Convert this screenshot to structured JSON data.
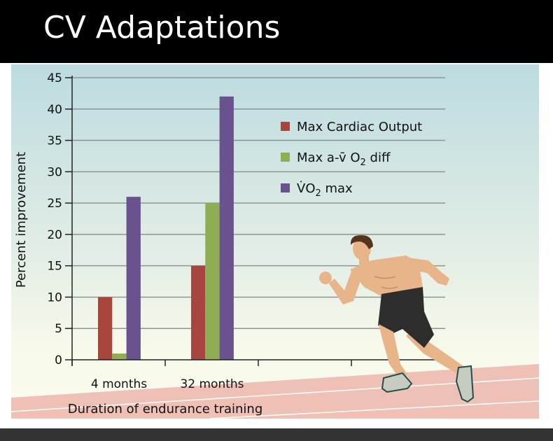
{
  "slide": {
    "title": "CV Adaptations"
  },
  "chart_data": {
    "type": "bar",
    "title": "",
    "xlabel": "Duration of endurance training",
    "ylabel": "Percent improvement",
    "categories": [
      "4 months",
      "32 months"
    ],
    "ylim": [
      0,
      45
    ],
    "yticks": [
      0,
      5,
      10,
      15,
      20,
      25,
      30,
      35,
      40,
      45
    ],
    "grid": true,
    "legend_placement": "top-right",
    "series": [
      {
        "name": "Max Cardiac Output",
        "values": [
          10,
          15
        ],
        "color": "#a8453f"
      },
      {
        "name": "Max a-v̄ O2 diff",
        "name_parts": [
          "Max a-v̄ O",
          "2",
          " diff"
        ],
        "values": [
          1,
          25
        ],
        "color": "#8fad52"
      },
      {
        "name": "V̇O2 max",
        "name_parts": [
          "V̇O",
          "2",
          " max"
        ],
        "values": [
          26,
          42
        ],
        "color": "#6a528e"
      }
    ]
  },
  "illustration": {
    "icon": "sprinter-running-on-track"
  }
}
